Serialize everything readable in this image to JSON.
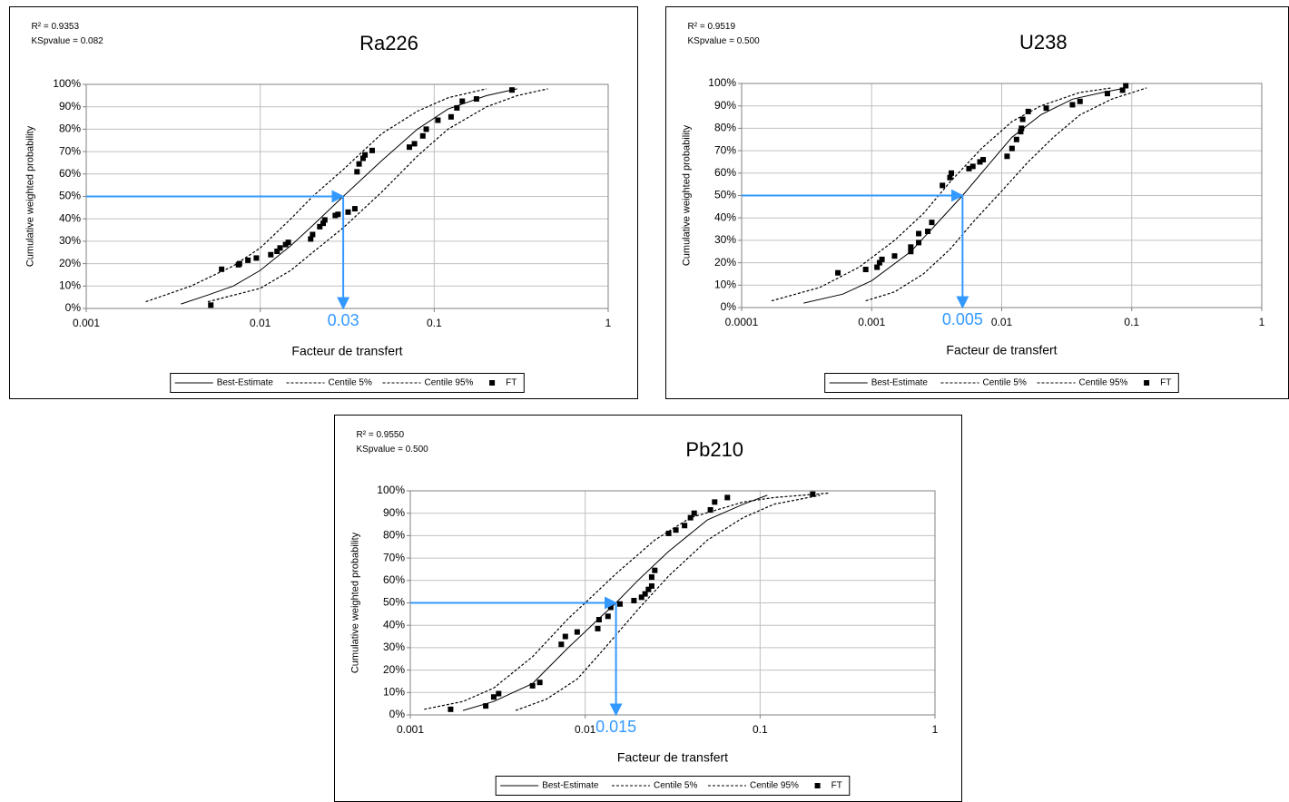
{
  "chart_data": [
    {
      "type": "line",
      "title": "Ra226",
      "stats": [
        "R² = 0.9353",
        "KSpvalue = 0.082"
      ],
      "xlabel": "Facteur de transfert",
      "ylabel": "Cumulative weighted probability",
      "xscale": "log",
      "xlim": [
        0.001,
        1
      ],
      "xticks": [
        0.001,
        0.01,
        0.1,
        1
      ],
      "ylim": [
        0,
        100
      ],
      "yticks": [
        {
          "value": 0,
          "label": "0%"
        },
        {
          "value": 10,
          "label": "10%"
        },
        {
          "value": 20,
          "label": "20%"
        },
        {
          "value": 30,
          "label": "30%"
        },
        {
          "value": 40,
          "label": "40%"
        },
        {
          "value": 50,
          "label": "50%"
        },
        {
          "value": 60,
          "label": "60%"
        },
        {
          "value": 70,
          "label": "70%"
        },
        {
          "value": 80,
          "label": "80%"
        },
        {
          "value": 90,
          "label": "90%"
        },
        {
          "value": 100,
          "label": "100%"
        }
      ],
      "grid": true,
      "annotation": {
        "x": 0.03,
        "y": 50,
        "label": "0.03",
        "color": "#3399ff"
      },
      "series": [
        {
          "name": "Best-Estimate",
          "color": "#000000",
          "style": "solid",
          "x": [
            0.0035,
            0.005,
            0.007,
            0.01,
            0.015,
            0.02,
            0.03,
            0.05,
            0.08,
            0.12,
            0.2,
            0.3
          ],
          "values": [
            2,
            6,
            10,
            17,
            28,
            37,
            50,
            66,
            80,
            89,
            95,
            98
          ]
        },
        {
          "name": "Centile 5%",
          "color": "#000000",
          "style": "dashed",
          "x": [
            0.0022,
            0.004,
            0.007,
            0.01,
            0.015,
            0.02,
            0.03,
            0.05,
            0.08,
            0.12,
            0.2
          ],
          "values": [
            3,
            10,
            19,
            27,
            40,
            50,
            62,
            78,
            88,
            94,
            98
          ]
        },
        {
          "name": "Centile 95%",
          "color": "#000000",
          "style": "dashed",
          "x": [
            0.005,
            0.01,
            0.015,
            0.02,
            0.03,
            0.05,
            0.08,
            0.12,
            0.2,
            0.3,
            0.45
          ],
          "values": [
            3,
            9,
            17,
            25,
            36,
            52,
            68,
            80,
            90,
            95,
            98
          ]
        },
        {
          "name": "FT",
          "color": "#000000",
          "style": "markers",
          "x": [
            0.0052,
            0.006,
            0.0075,
            0.0076,
            0.0085,
            0.0095,
            0.0115,
            0.0125,
            0.013,
            0.014,
            0.0145,
            0.0195,
            0.02,
            0.022,
            0.023,
            0.0235,
            0.027,
            0.028,
            0.032,
            0.035,
            0.036,
            0.037,
            0.039,
            0.04,
            0.044,
            0.072,
            0.077,
            0.086,
            0.09,
            0.105,
            0.125,
            0.135,
            0.145,
            0.175,
            0.28
          ],
          "values": [
            1.5,
            17.5,
            19.5,
            20,
            21.5,
            22.5,
            24,
            25.5,
            27,
            28.5,
            29.5,
            31,
            33,
            36.5,
            38,
            39.5,
            41.5,
            42,
            43,
            44.5,
            61,
            64.5,
            67,
            68.5,
            70.5,
            72,
            73.5,
            77,
            80,
            84,
            85.5,
            89.5,
            92.5,
            93.5,
            97.5
          ]
        }
      ]
    },
    {
      "type": "line",
      "title": "U238",
      "stats": [
        "R² = 0.9519",
        "KSpvalue = 0.500"
      ],
      "xlabel": "Facteur de transfert",
      "ylabel": "Cumulative weighted probability",
      "xscale": "log",
      "xlim": [
        0.0001,
        1
      ],
      "xticks": [
        0.0001,
        0.001,
        0.01,
        0.1,
        1
      ],
      "ylim": [
        0,
        100
      ],
      "yticks": [
        {
          "value": 0,
          "label": "0%"
        },
        {
          "value": 10,
          "label": "10%"
        },
        {
          "value": 20,
          "label": "20%"
        },
        {
          "value": 30,
          "label": "30%"
        },
        {
          "value": 40,
          "label": "40%"
        },
        {
          "value": 50,
          "label": "50%"
        },
        {
          "value": 60,
          "label": "60%"
        },
        {
          "value": 70,
          "label": "70%"
        },
        {
          "value": 80,
          "label": "80%"
        },
        {
          "value": 90,
          "label": "90%"
        },
        {
          "value": 100,
          "label": "100%"
        }
      ],
      "grid": true,
      "annotation": {
        "x": 0.005,
        "y": 50,
        "label": "0.005",
        "color": "#3399ff"
      },
      "series": [
        {
          "name": "Best-Estimate",
          "color": "#000000",
          "style": "solid",
          "x": [
            0.0003,
            0.0006,
            0.001,
            0.002,
            0.003,
            0.005,
            0.008,
            0.012,
            0.02,
            0.035,
            0.06,
            0.09
          ],
          "values": [
            2,
            6,
            12,
            25,
            36,
            50,
            64,
            76,
            86,
            93,
            96,
            98
          ]
        },
        {
          "name": "Centile 5%",
          "color": "#000000",
          "style": "dashed",
          "x": [
            0.00017,
            0.0004,
            0.0008,
            0.0015,
            0.0025,
            0.004,
            0.007,
            0.012,
            0.02,
            0.04,
            0.07
          ],
          "values": [
            3,
            9,
            18,
            30,
            42,
            56,
            71,
            83,
            90,
            96,
            98
          ]
        },
        {
          "name": "Centile 95%",
          "color": "#000000",
          "style": "dashed",
          "x": [
            0.0009,
            0.0015,
            0.0025,
            0.004,
            0.006,
            0.01,
            0.016,
            0.025,
            0.04,
            0.07,
            0.13
          ],
          "values": [
            3,
            7,
            15,
            26,
            38,
            52,
            65,
            76,
            86,
            93,
            98
          ]
        },
        {
          "name": "FT",
          "color": "#000000",
          "style": "markers",
          "x": [
            0.00055,
            0.0009,
            0.0011,
            0.00115,
            0.0012,
            0.0015,
            0.002,
            0.002,
            0.0023,
            0.0023,
            0.0027,
            0.0029,
            0.0035,
            0.004,
            0.0041,
            0.0056,
            0.006,
            0.0068,
            0.0072,
            0.011,
            0.012,
            0.013,
            0.014,
            0.0142,
            0.0145,
            0.016,
            0.022,
            0.035,
            0.04,
            0.065,
            0.085,
            0.09
          ],
          "values": [
            15.5,
            17,
            18,
            20,
            21.5,
            23,
            25,
            27,
            29,
            33,
            34,
            38,
            54.5,
            58,
            60,
            62,
            63,
            65,
            66,
            67.5,
            71,
            75,
            78.5,
            80,
            84,
            87.5,
            89,
            90.5,
            92,
            95.5,
            97,
            99
          ]
        }
      ]
    },
    {
      "type": "line",
      "title": "Pb210",
      "stats": [
        "R² = 0.9550",
        "KSpvalue = 0.500"
      ],
      "xlabel": "Facteur de transfert",
      "ylabel": "Cumulative weighted probability",
      "xscale": "log",
      "xlim": [
        0.001,
        1
      ],
      "xticks": [
        0.001,
        0.01,
        0.1,
        1
      ],
      "ylim": [
        0,
        100
      ],
      "yticks": [
        {
          "value": 0,
          "label": "0%"
        },
        {
          "value": 10,
          "label": "10%"
        },
        {
          "value": 20,
          "label": "20%"
        },
        {
          "value": 30,
          "label": "30%"
        },
        {
          "value": 40,
          "label": "40%"
        },
        {
          "value": 50,
          "label": "50%"
        },
        {
          "value": 60,
          "label": "60%"
        },
        {
          "value": 70,
          "label": "70%"
        },
        {
          "value": 80,
          "label": "80%"
        },
        {
          "value": 90,
          "label": "90%"
        },
        {
          "value": 100,
          "label": "100%"
        }
      ],
      "grid": true,
      "annotation": {
        "x": 0.015,
        "y": 50,
        "label": "0.015",
        "color": "#3399ff"
      },
      "series": [
        {
          "name": "Best-Estimate",
          "color": "#000000",
          "style": "solid",
          "x": [
            0.002,
            0.003,
            0.005,
            0.008,
            0.012,
            0.015,
            0.02,
            0.03,
            0.05,
            0.08,
            0.11
          ],
          "values": [
            2,
            6,
            14,
            30,
            43,
            50,
            60,
            73,
            87,
            94,
            98
          ]
        },
        {
          "name": "Centile 5%",
          "color": "#000000",
          "style": "dashed",
          "x": [
            0.0012,
            0.002,
            0.003,
            0.005,
            0.008,
            0.01,
            0.015,
            0.025,
            0.04,
            0.08,
            0.12,
            0.25
          ],
          "values": [
            2.5,
            6,
            12,
            26,
            43,
            50,
            63,
            78,
            88,
            95,
            97,
            99
          ]
        },
        {
          "name": "Centile 95%",
          "color": "#000000",
          "style": "dashed",
          "x": [
            0.004,
            0.006,
            0.009,
            0.013,
            0.02,
            0.03,
            0.05,
            0.08,
            0.12,
            0.22
          ],
          "values": [
            2,
            7,
            16,
            30,
            47,
            62,
            78,
            88,
            94,
            98
          ]
        },
        {
          "name": "FT",
          "color": "#000000",
          "style": "markers",
          "x": [
            0.0017,
            0.0027,
            0.003,
            0.0032,
            0.005,
            0.0055,
            0.0073,
            0.0077,
            0.009,
            0.0118,
            0.012,
            0.0135,
            0.014,
            0.0158,
            0.019,
            0.021,
            0.022,
            0.023,
            0.024,
            0.024,
            0.025,
            0.03,
            0.033,
            0.037,
            0.04,
            0.042,
            0.052,
            0.055,
            0.065,
            0.2
          ],
          "values": [
            2.5,
            4,
            8,
            9.5,
            13,
            14.5,
            31.5,
            35,
            37,
            38.5,
            42.5,
            44,
            48,
            49.5,
            51,
            52.5,
            54,
            56,
            57.5,
            61.5,
            64.5,
            81,
            82.5,
            84.5,
            88,
            90,
            91.5,
            95,
            97,
            98.5
          ]
        }
      ]
    }
  ]
}
